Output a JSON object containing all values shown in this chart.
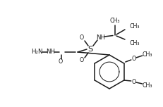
{
  "bg_color": "#ffffff",
  "line_color": "#1a1a1a",
  "line_width": 1.1,
  "font_size": 6.2,
  "fig_width": 2.31,
  "fig_height": 1.52,
  "dpi": 100,
  "xlim": [
    0,
    231
  ],
  "ylim": [
    0,
    152
  ]
}
